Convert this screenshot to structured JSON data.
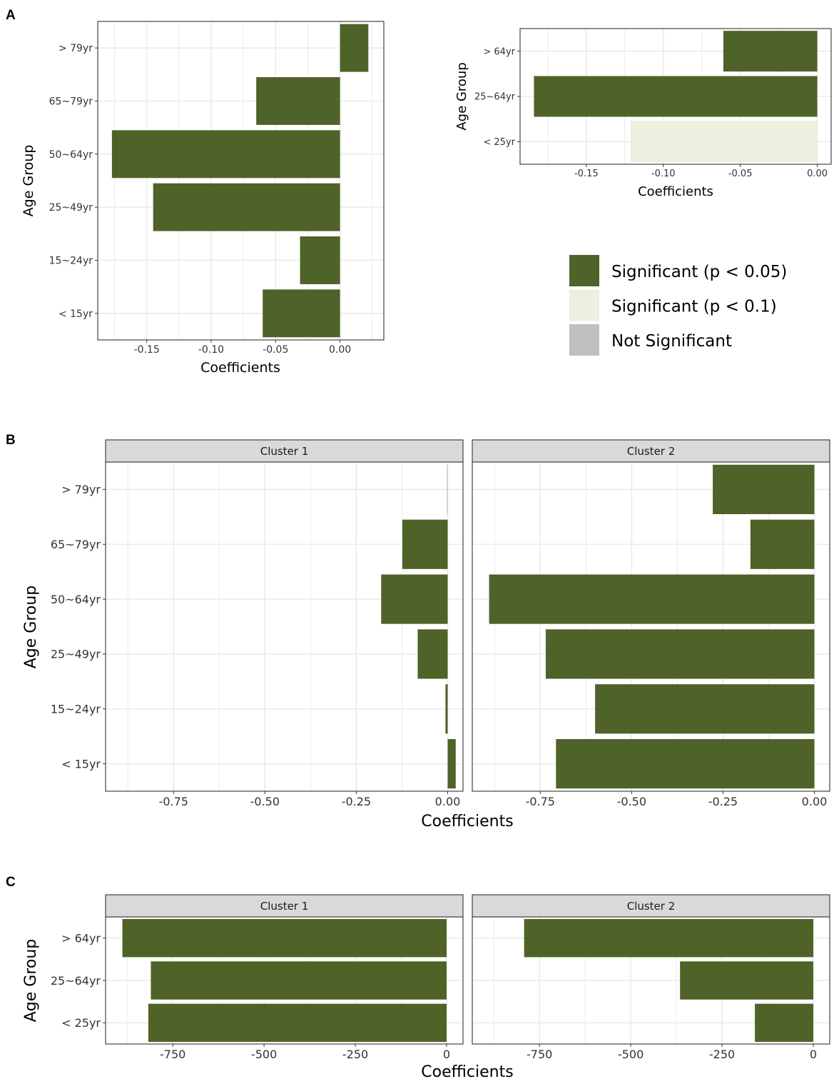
{
  "colors": {
    "sig05": "#4f6228",
    "sig10": "#ebf1de",
    "notsig": "#bfbfbf",
    "grid": "#ebebeb",
    "strip": "#d9d9d9"
  },
  "legend": {
    "items": [
      {
        "label": "Significant (p < 0.05)",
        "color_key": "sig05"
      },
      {
        "label": "Significant (p < 0.1)",
        "color_key": "sig10"
      },
      {
        "label": "Not Significant",
        "color_key": "notsig"
      }
    ]
  },
  "chart_data": [
    {
      "id": "A1",
      "panel_label": "A",
      "type": "bar",
      "orientation": "horizontal",
      "categories": [
        "> 79yr",
        "65~79yr",
        "50~64yr",
        "25~49yr",
        "15~24yr",
        "< 15yr"
      ],
      "values": [
        0.022,
        -0.065,
        -0.177,
        -0.145,
        -0.031,
        -0.06
      ],
      "significance": [
        "sig05",
        "sig05",
        "sig05",
        "sig05",
        "sig05",
        "sig05"
      ],
      "xlabel": "Coefficients",
      "ylabel": "Age Group",
      "xlim": [
        -0.188,
        0.034
      ],
      "xticks": [
        -0.15,
        -0.1,
        -0.05,
        0.0
      ],
      "xtick_labels": [
        "-0.15",
        "-0.10",
        "-0.05",
        "0.00"
      ],
      "grid": true
    },
    {
      "id": "A2",
      "type": "bar",
      "orientation": "horizontal",
      "categories": [
        "> 64yr",
        "25~64yr",
        "< 25yr"
      ],
      "values": [
        -0.061,
        -0.184,
        -0.121
      ],
      "significance": [
        "sig05",
        "sig05",
        "sig10"
      ],
      "xlabel": "Coefficients",
      "ylabel": "Age Group",
      "xlim": [
        -0.193,
        0.009
      ],
      "xticks": [
        -0.15,
        -0.1,
        -0.05,
        0.0
      ],
      "xtick_labels": [
        "-0.15",
        "-0.10",
        "-0.05",
        "0.00"
      ],
      "grid": true
    },
    {
      "id": "B",
      "panel_label": "B",
      "type": "bar",
      "orientation": "horizontal",
      "categories": [
        "> 79yr",
        "65~79yr",
        "50~64yr",
        "25~49yr",
        "15~24yr",
        "< 15yr"
      ],
      "xlabel": "Coefficients",
      "ylabel": "Age Group",
      "xlim": [
        -0.936,
        0.042
      ],
      "xticks": [
        -0.75,
        -0.5,
        -0.25,
        0.0
      ],
      "xtick_labels": [
        "-0.75",
        "-0.50",
        "-0.25",
        "0.00"
      ],
      "grid": true,
      "facets": [
        {
          "title": "Cluster 1",
          "values": [
            -0.002,
            -0.124,
            -0.182,
            -0.082,
            -0.006,
            0.022
          ],
          "significance": [
            "notsig",
            "sig05",
            "sig05",
            "sig05",
            "sig05",
            "sig05"
          ]
        },
        {
          "title": "Cluster 2",
          "values": [
            -0.278,
            -0.175,
            -0.89,
            -0.735,
            -0.6,
            -0.707
          ],
          "significance": [
            "sig05",
            "sig05",
            "sig05",
            "sig05",
            "sig05",
            "sig05"
          ]
        }
      ]
    },
    {
      "id": "C",
      "panel_label": "C",
      "type": "bar",
      "orientation": "horizontal",
      "categories": [
        "> 64yr",
        "25~64yr",
        "< 25yr"
      ],
      "xlabel": "Coefficients",
      "ylabel": "Age Group",
      "xlim": [
        -934,
        45
      ],
      "xticks": [
        -750,
        -500,
        -250,
        0
      ],
      "xtick_labels": [
        "-750",
        "-500",
        "-250",
        "0"
      ],
      "grid": true,
      "facets": [
        {
          "title": "Cluster 1",
          "values": [
            -888,
            -810,
            -817
          ],
          "significance": [
            "sig05",
            "sig05",
            "sig05"
          ]
        },
        {
          "title": "Cluster 2",
          "values": [
            -792,
            -365,
            -160
          ],
          "significance": [
            "sig05",
            "sig05",
            "sig05"
          ]
        }
      ]
    }
  ]
}
